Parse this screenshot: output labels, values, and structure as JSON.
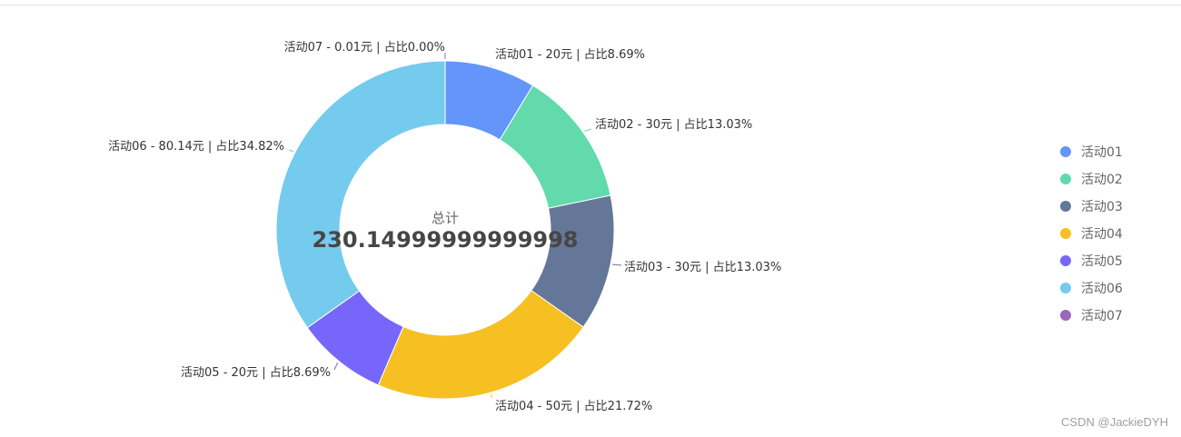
{
  "chart_data": {
    "type": "pie",
    "variant": "donut",
    "categories": [
      "活动01",
      "活动02",
      "活动03",
      "活动04",
      "活动05",
      "活动06",
      "活动07"
    ],
    "values": [
      20,
      30,
      30,
      50,
      20,
      80.14,
      0.01
    ],
    "percentages": [
      "8.69%",
      "13.03%",
      "13.03%",
      "21.72%",
      "8.69%",
      "34.82%",
      "0.00%"
    ],
    "colors": [
      "#6395fa",
      "#62daab",
      "#657798",
      "#f6c022",
      "#7666f9",
      "#74cbed",
      "#9968bd"
    ],
    "labels": [
      "活动01 - 20元 | 占比8.69%",
      "活动02 - 30元 | 占比13.03%",
      "活动03 - 30元 | 占比13.03%",
      "活动04 - 50元 | 占比21.72%",
      "活动05 - 20元 | 占比8.69%",
      "活动06 - 80.14元 | 占比34.82%",
      "活动07 - 0.01元 | 占比0.00%"
    ],
    "center_title": "总计",
    "center_value": "230.14999999999998",
    "legend": [
      "活动01",
      "活动02",
      "活动03",
      "活动04",
      "活动05",
      "活动06",
      "活动07"
    ],
    "legend_position": "right"
  },
  "watermark": "CSDN @JackieDYH"
}
